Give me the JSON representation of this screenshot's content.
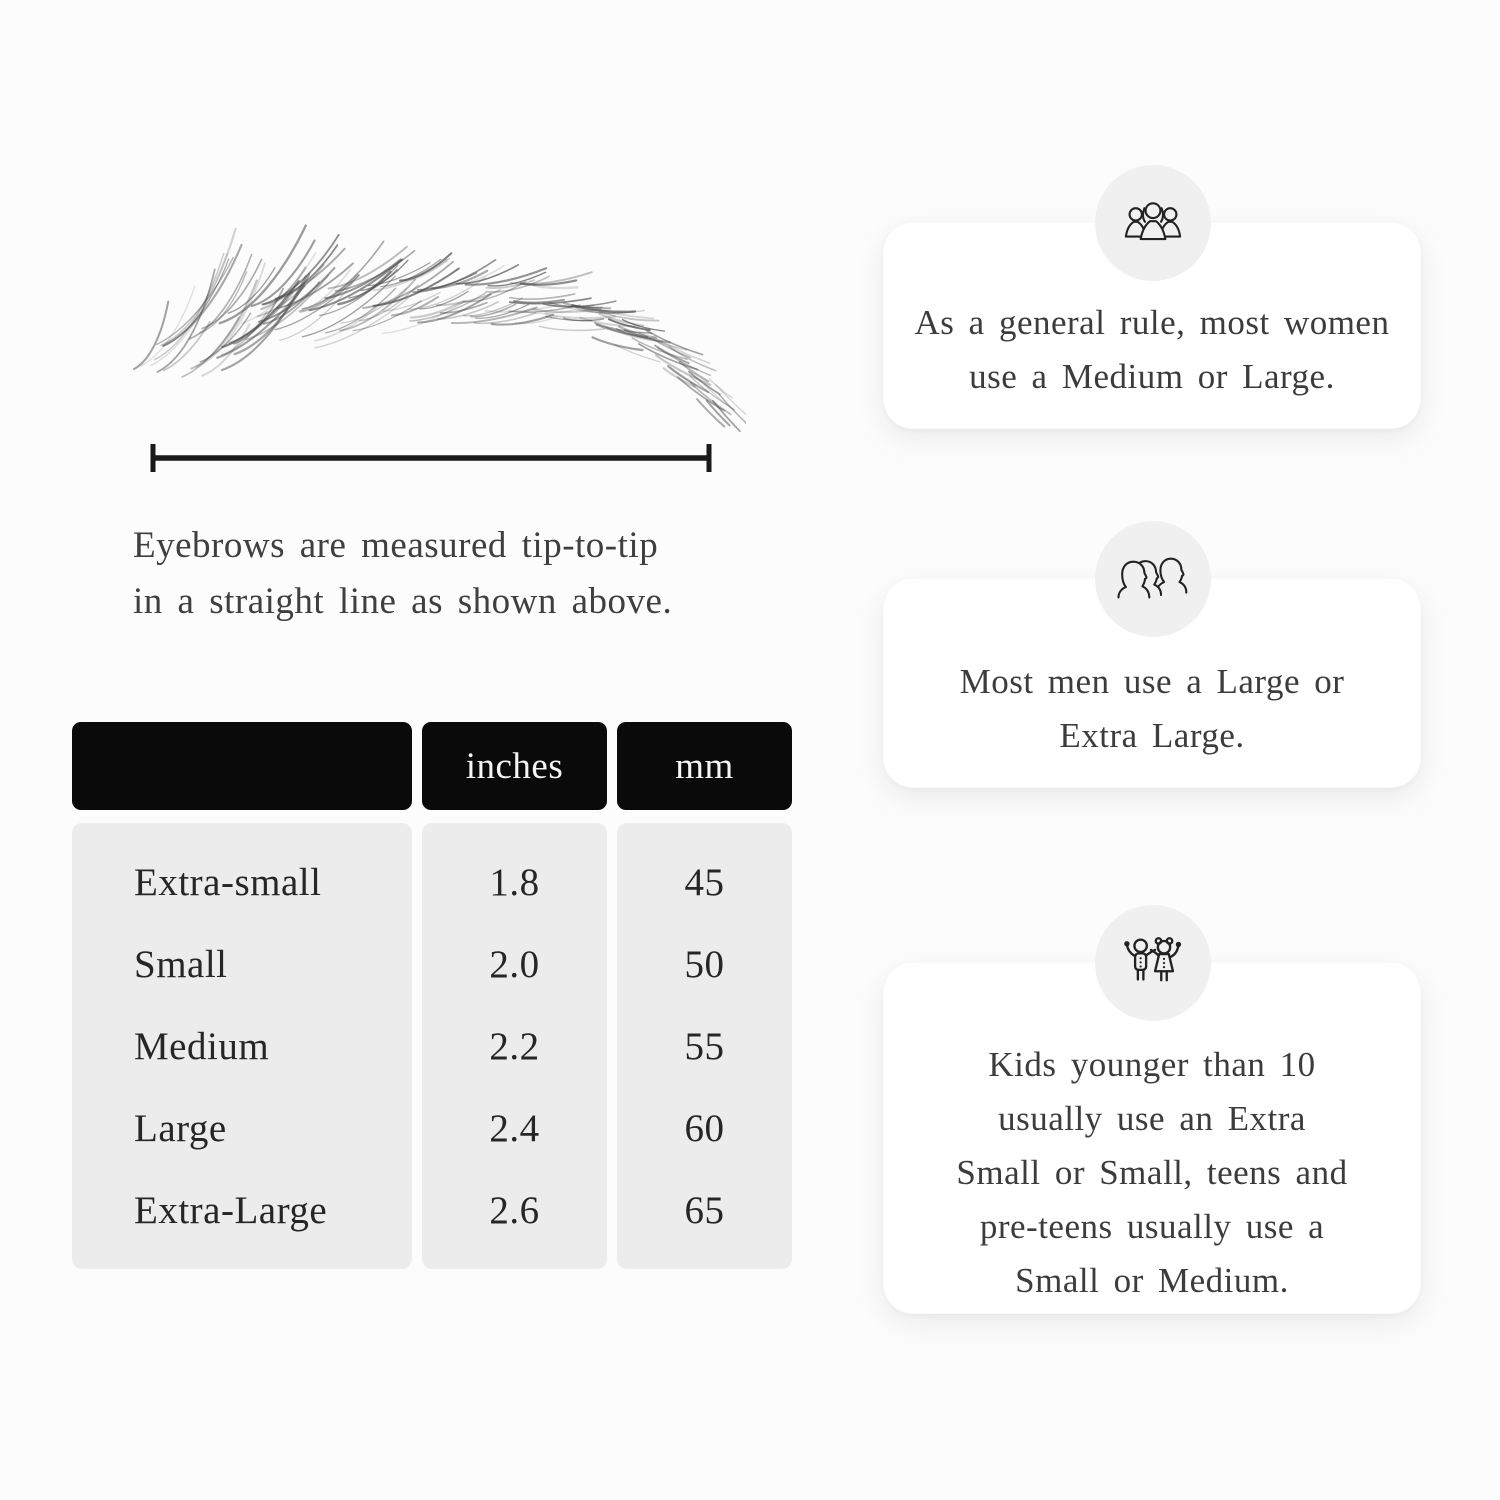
{
  "measurement": {
    "caption_lines": [
      "Eyebrows are measured tip-to-tip",
      "in a straight line as shown above."
    ]
  },
  "size_table": {
    "columns": [
      "",
      "inches",
      "mm"
    ],
    "rows": [
      {
        "label": "Extra-small",
        "inches": "1.8",
        "mm": "45"
      },
      {
        "label": "Small",
        "inches": "2.0",
        "mm": "50"
      },
      {
        "label": "Medium",
        "inches": "2.2",
        "mm": "55"
      },
      {
        "label": "Large",
        "inches": "2.4",
        "mm": "60"
      },
      {
        "label": "Extra-Large",
        "inches": "2.6",
        "mm": "65"
      }
    ]
  },
  "cards": [
    {
      "icon": "women-group-icon",
      "lines": [
        "As a general rule, most women",
        "use a Medium or Large."
      ]
    },
    {
      "icon": "men-group-icon",
      "lines": [
        "Most men use a Large or",
        "Extra Large."
      ]
    },
    {
      "icon": "kids-icon",
      "lines": [
        "Kids younger than 10",
        "usually use an Extra",
        "Small or Small, teens and",
        "pre-teens usually use a",
        "Small or Medium."
      ]
    }
  ],
  "colors": {
    "page_bg": "#fcfcfc",
    "table_header_bg": "#0a0a0a",
    "table_body_bg": "#ececec",
    "card_bg": "#ffffff",
    "badge_bg": "#f0f0f0",
    "text": "#3c3c3c",
    "line": "#1a1a1a"
  }
}
